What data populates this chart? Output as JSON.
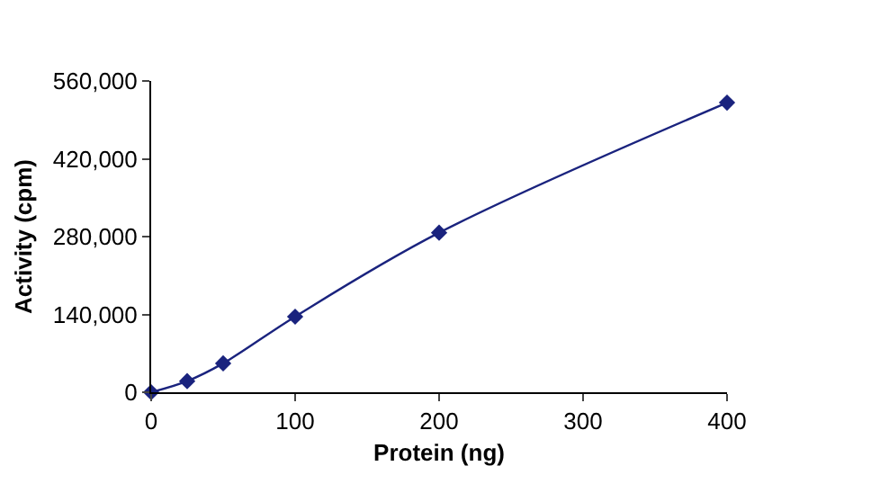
{
  "chart_data": {
    "type": "line",
    "xlabel": "Protein (ng)",
    "ylabel": "Activity (cpm)",
    "x": [
      0,
      25,
      50,
      100,
      200,
      400
    ],
    "series": [
      {
        "color": "#1a237e",
        "values": [
          0,
          20000,
          52000,
          136000,
          287000,
          521000
        ]
      }
    ],
    "xlim": [
      0,
      400
    ],
    "xticks": [
      0,
      100,
      200,
      300,
      400
    ],
    "ylim": [
      0,
      560000
    ],
    "yticks": [
      {
        "value": 0,
        "label": "0"
      },
      {
        "value": 140000,
        "label": "140,000"
      },
      {
        "value": 280000,
        "label": "280,000"
      },
      {
        "value": 420000,
        "label": "420,000"
      },
      {
        "value": 560000,
        "label": "560,000"
      }
    ],
    "legend": false,
    "marker": "diamond",
    "line_style": "solid"
  }
}
